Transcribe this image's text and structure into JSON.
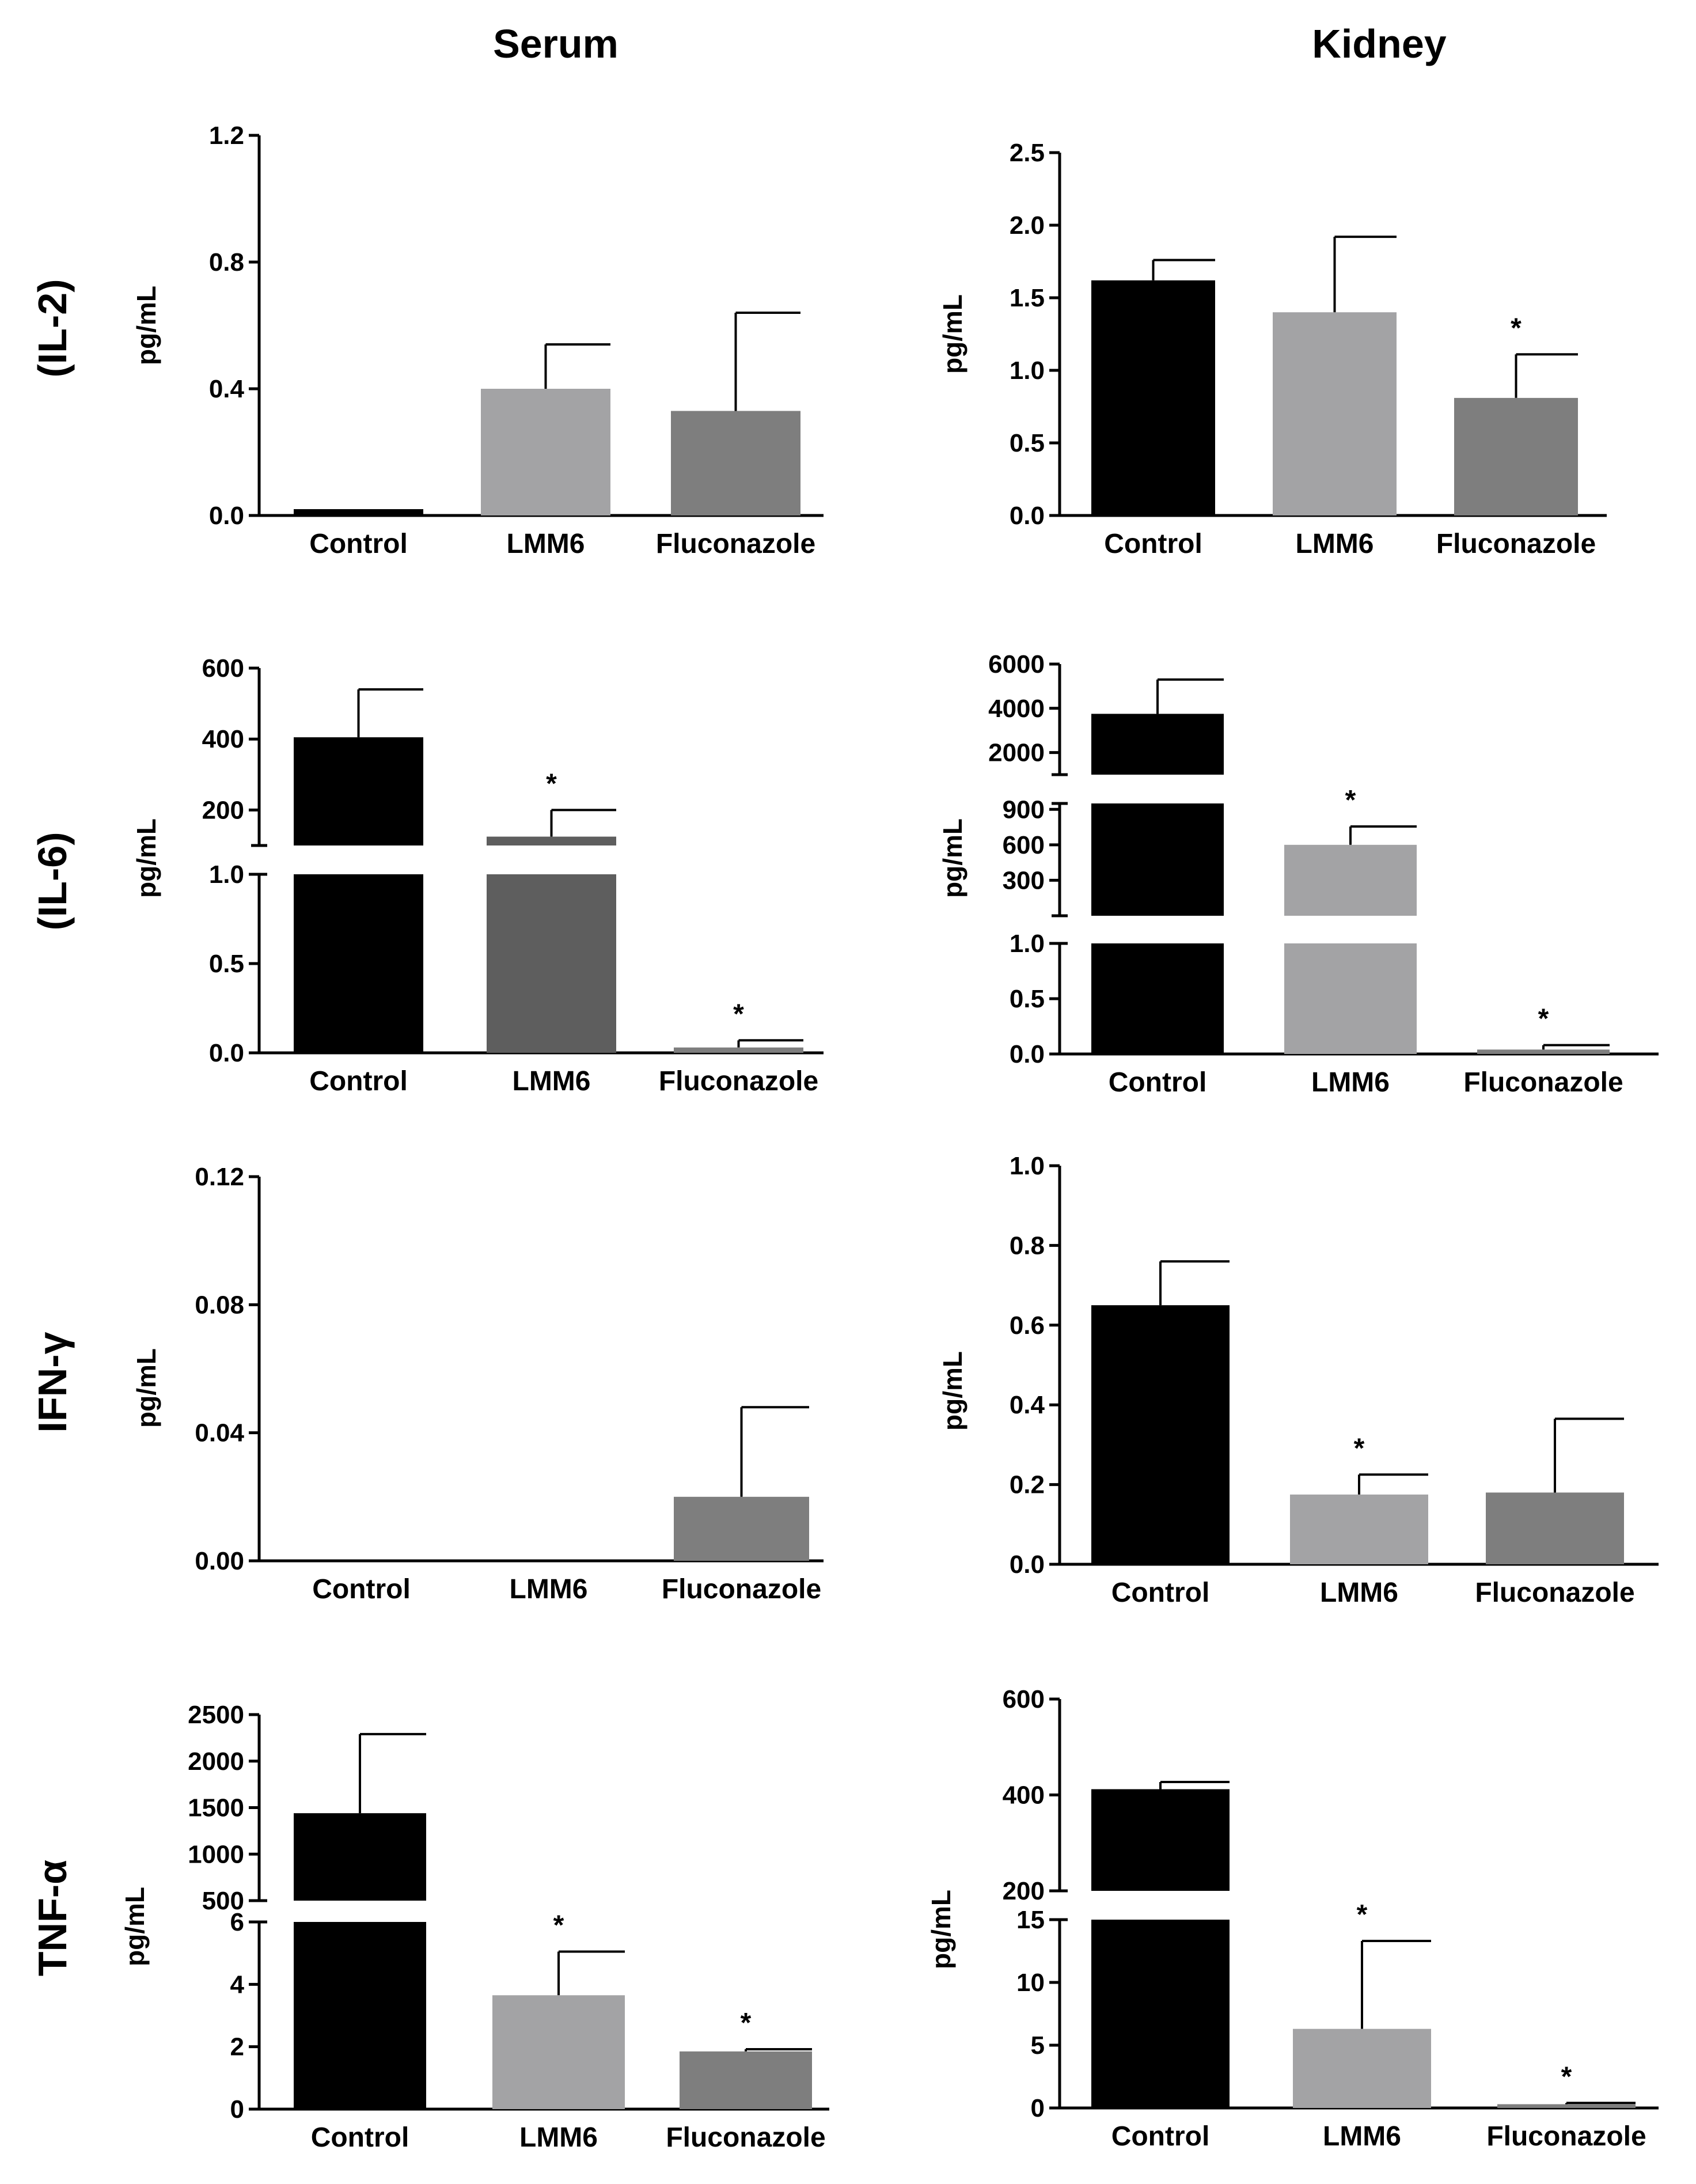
{
  "figure": {
    "column_titles": [
      "Serum",
      "Kidney"
    ],
    "row_titles": [
      "(IL-2)",
      "(IL-6)",
      "IFN-γ",
      "TNF-α"
    ]
  },
  "colors": {
    "Control": "#000000",
    "LMM6": "#a3a3a5",
    "Fluconazole": "#7e7e7e",
    "LMM6_dark": "#5e5e5e"
  },
  "chart_data": [
    {
      "id": "serum-il2",
      "row": 0,
      "col": 0,
      "type": "bar",
      "ylabel": "pg/mL",
      "categories": [
        "Control",
        "LMM6",
        "Fluconazole"
      ],
      "values": [
        0.02,
        0.4,
        0.33
      ],
      "errors": [
        0.0,
        0.14,
        0.31
      ],
      "significant": [
        false,
        false,
        false
      ],
      "segments": [
        {
          "range": [
            0,
            1.2
          ],
          "ticks": [
            "0.0",
            "0.4",
            "0.8",
            "1.2"
          ]
        }
      ]
    },
    {
      "id": "kidney-il2",
      "row": 0,
      "col": 1,
      "type": "bar",
      "ylabel": "pg/mL",
      "categories": [
        "Control",
        "LMM6",
        "Fluconazole"
      ],
      "values": [
        1.62,
        1.4,
        0.81
      ],
      "errors": [
        0.14,
        0.52,
        0.3
      ],
      "significant": [
        false,
        false,
        true
      ],
      "segments": [
        {
          "range": [
            0,
            2.5
          ],
          "ticks": [
            "0.0",
            "0.5",
            "1.0",
            "1.5",
            "2.0",
            "2.5"
          ]
        }
      ]
    },
    {
      "id": "serum-il6",
      "row": 1,
      "col": 0,
      "type": "bar",
      "ylabel": "pg/mL",
      "categories": [
        "Control",
        "LMM6",
        "Fluconazole"
      ],
      "values": [
        405,
        125,
        0.03
      ],
      "errors": [
        135,
        75,
        0.04
      ],
      "significant": [
        false,
        true,
        true
      ],
      "bar_colors": [
        "Control",
        "LMM6_dark",
        "Fluconazole"
      ],
      "segments": [
        {
          "range": [
            0,
            1.0
          ],
          "ticks": [
            "0.0",
            "0.5",
            "1.0"
          ]
        },
        {
          "range": [
            100,
            600
          ],
          "ticks": [
            "200",
            "400",
            "600"
          ]
        }
      ]
    },
    {
      "id": "kidney-il6",
      "row": 1,
      "col": 1,
      "type": "bar",
      "ylabel": "pg/mL",
      "categories": [
        "Control",
        "LMM6",
        "Fluconazole"
      ],
      "values": [
        3750,
        600,
        0.04
      ],
      "errors": [
        1550,
        155,
        0.04
      ],
      "significant": [
        false,
        true,
        true
      ],
      "segments": [
        {
          "range": [
            0,
            1.0
          ],
          "ticks": [
            "0.0",
            "0.5",
            "1.0"
          ]
        },
        {
          "range": [
            0,
            950
          ],
          "ticks": [
            "300",
            "600",
            "900"
          ]
        },
        {
          "range": [
            1000,
            6000
          ],
          "ticks": [
            "2000",
            "4000",
            "6000"
          ]
        }
      ]
    },
    {
      "id": "serum-ifng",
      "row": 2,
      "col": 0,
      "type": "bar",
      "ylabel": "pg/mL",
      "categories": [
        "Control",
        "LMM6",
        "Fluconazole"
      ],
      "values": [
        0,
        0,
        0.02
      ],
      "errors": [
        0,
        0,
        0.028
      ],
      "significant": [
        false,
        false,
        false
      ],
      "segments": [
        {
          "range": [
            0,
            0.12
          ],
          "ticks": [
            "0.00",
            "0.04",
            "0.08",
            "0.12"
          ]
        }
      ]
    },
    {
      "id": "kidney-ifng",
      "row": 2,
      "col": 1,
      "type": "bar",
      "ylabel": "pg/mL",
      "categories": [
        "Control",
        "LMM6",
        "Fluconazole"
      ],
      "values": [
        0.65,
        0.175,
        0.18
      ],
      "errors": [
        0.11,
        0.05,
        0.185
      ],
      "significant": [
        false,
        true,
        false
      ],
      "segments": [
        {
          "range": [
            0,
            1.0
          ],
          "ticks": [
            "0.0",
            "0.2",
            "0.4",
            "0.6",
            "0.8",
            "1.0"
          ]
        }
      ]
    },
    {
      "id": "serum-tnfa",
      "row": 3,
      "col": 0,
      "type": "bar",
      "ylabel": "pg/mL",
      "categories": [
        "Control",
        "LMM6",
        "Fluconazole"
      ],
      "values": [
        1440,
        3.65,
        1.85
      ],
      "errors": [
        850,
        1.4,
        0.07
      ],
      "significant": [
        false,
        true,
        true
      ],
      "segments": [
        {
          "range": [
            0,
            6
          ],
          "ticks": [
            "0",
            "2",
            "4",
            "6"
          ]
        },
        {
          "range": [
            500,
            2500
          ],
          "ticks": [
            "500",
            "1000",
            "1500",
            "2000",
            "2500"
          ]
        }
      ]
    },
    {
      "id": "kidney-tnfa",
      "row": 3,
      "col": 1,
      "type": "bar",
      "ylabel": "pg/mL",
      "categories": [
        "Control",
        "LMM6",
        "Fluconazole"
      ],
      "values": [
        412,
        6.3,
        0.3
      ],
      "errors": [
        15,
        7.0,
        0.1
      ],
      "significant": [
        false,
        true,
        true
      ],
      "segments": [
        {
          "range": [
            0,
            15
          ],
          "ticks": [
            "0",
            "5",
            "10",
            "15"
          ]
        },
        {
          "range": [
            200,
            600
          ],
          "ticks": [
            "200",
            "400",
            "600"
          ]
        }
      ]
    }
  ]
}
